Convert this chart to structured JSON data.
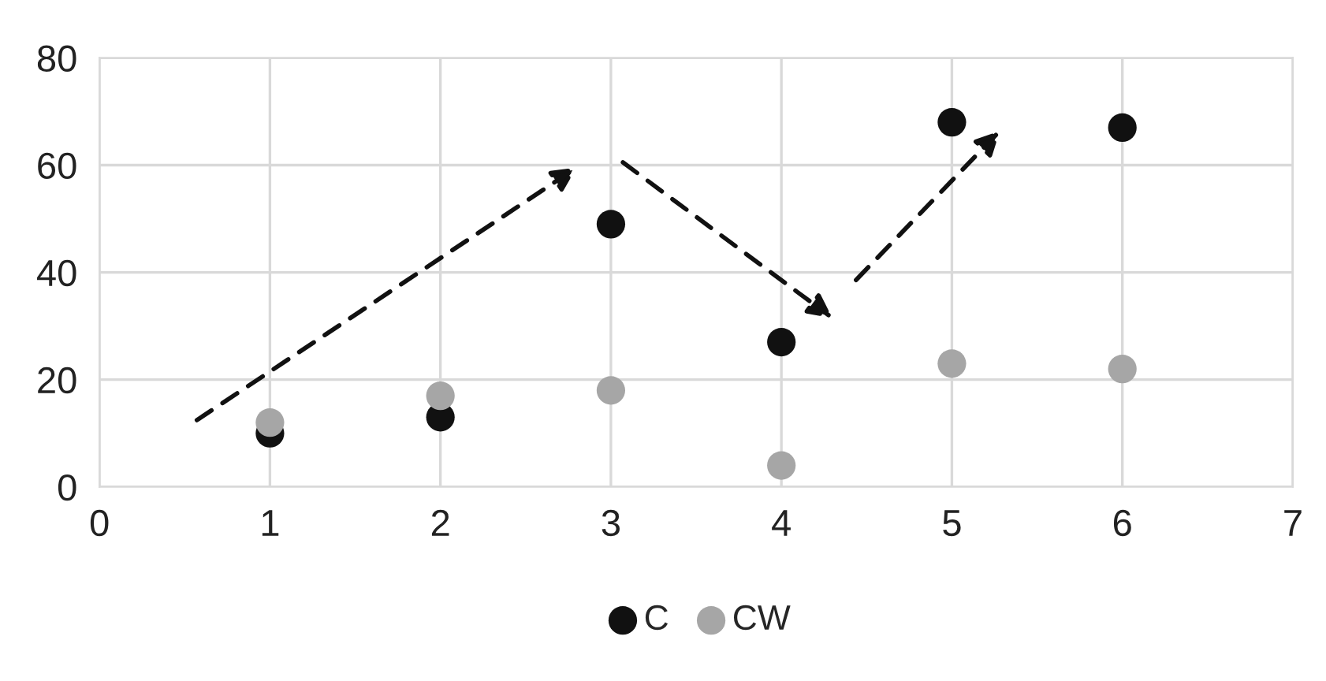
{
  "chart_data": {
    "type": "scatter",
    "x": [
      1,
      2,
      3,
      4,
      5,
      6
    ],
    "series": [
      {
        "name": "C",
        "color": "#111111",
        "values": [
          10,
          13,
          49,
          27,
          68,
          67
        ]
      },
      {
        "name": "CW",
        "color": "#a6a6a6",
        "values": [
          12,
          17,
          18,
          4,
          23,
          22
        ]
      }
    ],
    "xlim": [
      0,
      7
    ],
    "xticks": [
      0,
      1,
      2,
      3,
      4,
      5,
      6,
      7
    ],
    "ylim": [
      0,
      80
    ],
    "yticks": [
      0,
      20,
      40,
      60,
      80
    ],
    "grid": true,
    "legend": "bottom",
    "marker": "circle"
  }
}
